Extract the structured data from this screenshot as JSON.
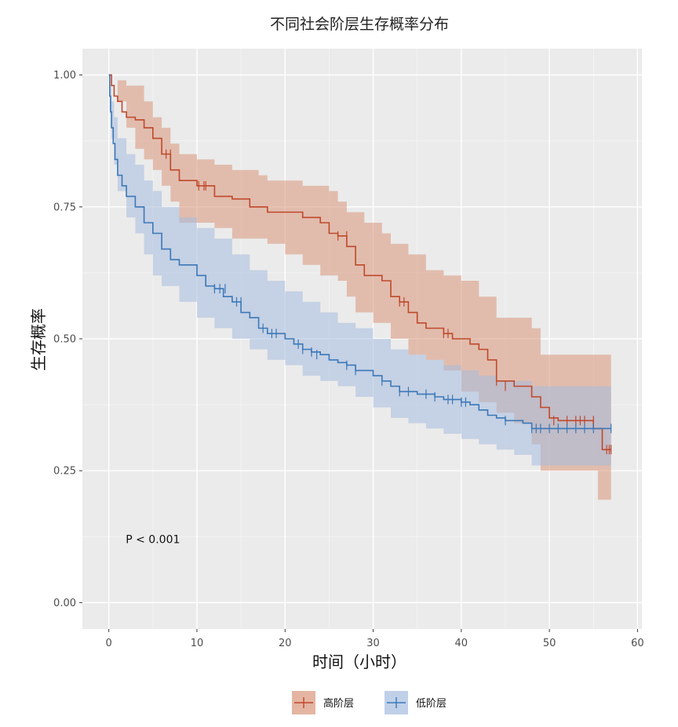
{
  "chart_data": {
    "type": "line",
    "subtype": "kaplan-meier survival curve with confidence bands",
    "title": "不同社会阶层生存概率分布",
    "xlabel": "时间（小时）",
    "ylabel": "生存概率",
    "xlim": [
      -3,
      60.5
    ],
    "ylim": [
      -0.05,
      1.05
    ],
    "xticks": [
      "0",
      "10",
      "20",
      "30",
      "40",
      "50",
      "60"
    ],
    "xtick_values": [
      0,
      10,
      20,
      30,
      40,
      50,
      60
    ],
    "yticks": [
      "0.00",
      "0.25",
      "0.50",
      "0.75",
      "1.00"
    ],
    "ytick_values": [
      0,
      0.25,
      0.5,
      0.75,
      1.0
    ],
    "grid": true,
    "legend_position": "bottom",
    "annotation": {
      "text": "P < 0.001",
      "x": 5,
      "y": 0.12
    },
    "series": [
      {
        "name": "高阶层",
        "color": "#c0482a",
        "band_color": "#d9957a",
        "points": [
          [
            0,
            1.0
          ],
          [
            0.3,
            0.98
          ],
          [
            0.6,
            0.96
          ],
          [
            1,
            0.95
          ],
          [
            1.5,
            0.93
          ],
          [
            2,
            0.92
          ],
          [
            3,
            0.915
          ],
          [
            4,
            0.9
          ],
          [
            5,
            0.88
          ],
          [
            6,
            0.85
          ],
          [
            7,
            0.82
          ],
          [
            8,
            0.8
          ],
          [
            10,
            0.79
          ],
          [
            12,
            0.77
          ],
          [
            14,
            0.765
          ],
          [
            16,
            0.75
          ],
          [
            18,
            0.74
          ],
          [
            20,
            0.74
          ],
          [
            22,
            0.73
          ],
          [
            24,
            0.72
          ],
          [
            25,
            0.7
          ],
          [
            26,
            0.695
          ],
          [
            27,
            0.675
          ],
          [
            28,
            0.64
          ],
          [
            29,
            0.62
          ],
          [
            31,
            0.61
          ],
          [
            32,
            0.58
          ],
          [
            33,
            0.57
          ],
          [
            34,
            0.55
          ],
          [
            35,
            0.53
          ],
          [
            36,
            0.52
          ],
          [
            38,
            0.51
          ],
          [
            39,
            0.5
          ],
          [
            41,
            0.49
          ],
          [
            42,
            0.48
          ],
          [
            43,
            0.46
          ],
          [
            44,
            0.42
          ],
          [
            46,
            0.41
          ],
          [
            48,
            0.39
          ],
          [
            49,
            0.37
          ],
          [
            50,
            0.35
          ],
          [
            51,
            0.345
          ],
          [
            55,
            0.33
          ],
          [
            56,
            0.29
          ],
          [
            57,
            0.29
          ]
        ],
        "upper": [
          [
            0,
            1.0
          ],
          [
            1,
            0.99
          ],
          [
            2,
            0.98
          ],
          [
            4,
            0.95
          ],
          [
            5,
            0.92
          ],
          [
            6,
            0.9
          ],
          [
            7,
            0.87
          ],
          [
            8,
            0.85
          ],
          [
            10,
            0.84
          ],
          [
            12,
            0.83
          ],
          [
            14,
            0.82
          ],
          [
            17,
            0.81
          ],
          [
            18,
            0.8
          ],
          [
            22,
            0.79
          ],
          [
            25,
            0.78
          ],
          [
            26,
            0.76
          ],
          [
            27,
            0.74
          ],
          [
            29,
            0.72
          ],
          [
            31,
            0.7
          ],
          [
            32,
            0.68
          ],
          [
            34,
            0.66
          ],
          [
            36,
            0.63
          ],
          [
            38,
            0.62
          ],
          [
            40,
            0.61
          ],
          [
            42,
            0.58
          ],
          [
            44,
            0.54
          ],
          [
            48,
            0.52
          ],
          [
            49,
            0.47
          ],
          [
            55,
            0.47
          ],
          [
            57,
            0.47
          ]
        ],
        "lower": [
          [
            0,
            1.0
          ],
          [
            1,
            0.95
          ],
          [
            2,
            0.9
          ],
          [
            3,
            0.86
          ],
          [
            4,
            0.84
          ],
          [
            5,
            0.82
          ],
          [
            6,
            0.79
          ],
          [
            7,
            0.76
          ],
          [
            8,
            0.72
          ],
          [
            12,
            0.71
          ],
          [
            14,
            0.69
          ],
          [
            18,
            0.68
          ],
          [
            20,
            0.66
          ],
          [
            22,
            0.64
          ],
          [
            24,
            0.62
          ],
          [
            26,
            0.61
          ],
          [
            27,
            0.58
          ],
          [
            28,
            0.55
          ],
          [
            30,
            0.53
          ],
          [
            32,
            0.5
          ],
          [
            34,
            0.47
          ],
          [
            36,
            0.46
          ],
          [
            38,
            0.44
          ],
          [
            40,
            0.4
          ],
          [
            42,
            0.38
          ],
          [
            44,
            0.36
          ],
          [
            46,
            0.34
          ],
          [
            48,
            0.3
          ],
          [
            49,
            0.25
          ],
          [
            55,
            0.25
          ],
          [
            55.5,
            0.195
          ],
          [
            57,
            0.195
          ]
        ],
        "censored": [
          [
            6.5,
            0.85
          ],
          [
            7,
            0.85
          ],
          [
            10.2,
            0.79
          ],
          [
            10.8,
            0.79
          ],
          [
            11,
            0.79
          ],
          [
            26,
            0.695
          ],
          [
            27,
            0.695
          ],
          [
            33,
            0.57
          ],
          [
            33.5,
            0.57
          ],
          [
            38,
            0.51
          ],
          [
            38.5,
            0.51
          ],
          [
            44,
            0.42
          ],
          [
            45,
            0.41
          ],
          [
            50.5,
            0.345
          ],
          [
            52,
            0.345
          ],
          [
            53,
            0.345
          ],
          [
            53.5,
            0.345
          ],
          [
            54,
            0.345
          ],
          [
            55,
            0.345
          ],
          [
            56.5,
            0.29
          ],
          [
            56.8,
            0.29
          ],
          [
            57,
            0.29
          ]
        ]
      },
      {
        "name": "低阶层",
        "color": "#3a78b9",
        "band_color": "#a5bcdf",
        "points": [
          [
            0,
            1.0
          ],
          [
            0.1,
            0.96
          ],
          [
            0.2,
            0.93
          ],
          [
            0.3,
            0.9
          ],
          [
            0.5,
            0.87
          ],
          [
            0.7,
            0.84
          ],
          [
            1,
            0.81
          ],
          [
            1.5,
            0.79
          ],
          [
            2,
            0.77
          ],
          [
            3,
            0.75
          ],
          [
            4,
            0.72
          ],
          [
            5,
            0.7
          ],
          [
            6,
            0.67
          ],
          [
            7,
            0.65
          ],
          [
            8,
            0.64
          ],
          [
            10,
            0.62
          ],
          [
            11,
            0.6
          ],
          [
            12,
            0.595
          ],
          [
            13,
            0.58
          ],
          [
            14,
            0.57
          ],
          [
            15,
            0.55
          ],
          [
            16,
            0.54
          ],
          [
            17,
            0.52
          ],
          [
            18,
            0.51
          ],
          [
            20,
            0.5
          ],
          [
            21,
            0.49
          ],
          [
            22,
            0.48
          ],
          [
            23,
            0.475
          ],
          [
            24,
            0.47
          ],
          [
            25,
            0.46
          ],
          [
            26,
            0.455
          ],
          [
            27,
            0.45
          ],
          [
            28,
            0.44
          ],
          [
            30,
            0.43
          ],
          [
            31,
            0.42
          ],
          [
            32,
            0.41
          ],
          [
            33,
            0.4
          ],
          [
            35,
            0.395
          ],
          [
            37,
            0.39
          ],
          [
            38,
            0.385
          ],
          [
            40,
            0.38
          ],
          [
            41,
            0.375
          ],
          [
            42,
            0.365
          ],
          [
            43,
            0.355
          ],
          [
            44,
            0.35
          ],
          [
            45,
            0.345
          ],
          [
            47,
            0.34
          ],
          [
            48,
            0.33
          ],
          [
            57,
            0.33
          ]
        ],
        "upper": [
          [
            0,
            1.0
          ],
          [
            0.1,
            0.98
          ],
          [
            0.3,
            0.95
          ],
          [
            0.6,
            0.92
          ],
          [
            1,
            0.88
          ],
          [
            2,
            0.85
          ],
          [
            3,
            0.83
          ],
          [
            4,
            0.8
          ],
          [
            5,
            0.78
          ],
          [
            6,
            0.75
          ],
          [
            8,
            0.73
          ],
          [
            10,
            0.71
          ],
          [
            12,
            0.69
          ],
          [
            14,
            0.66
          ],
          [
            16,
            0.63
          ],
          [
            18,
            0.61
          ],
          [
            20,
            0.59
          ],
          [
            22,
            0.57
          ],
          [
            24,
            0.55
          ],
          [
            26,
            0.53
          ],
          [
            28,
            0.52
          ],
          [
            30,
            0.5
          ],
          [
            32,
            0.48
          ],
          [
            34,
            0.47
          ],
          [
            36,
            0.46
          ],
          [
            38,
            0.45
          ],
          [
            40,
            0.44
          ],
          [
            42,
            0.43
          ],
          [
            44,
            0.42
          ],
          [
            48,
            0.41
          ],
          [
            57,
            0.41
          ]
        ],
        "lower": [
          [
            0,
            1.0
          ],
          [
            0.1,
            0.93
          ],
          [
            0.3,
            0.88
          ],
          [
            0.6,
            0.83
          ],
          [
            1,
            0.78
          ],
          [
            2,
            0.73
          ],
          [
            3,
            0.7
          ],
          [
            4,
            0.66
          ],
          [
            5,
            0.62
          ],
          [
            6,
            0.6
          ],
          [
            8,
            0.57
          ],
          [
            10,
            0.54
          ],
          [
            12,
            0.52
          ],
          [
            14,
            0.5
          ],
          [
            16,
            0.48
          ],
          [
            18,
            0.46
          ],
          [
            20,
            0.45
          ],
          [
            22,
            0.43
          ],
          [
            24,
            0.42
          ],
          [
            26,
            0.41
          ],
          [
            28,
            0.39
          ],
          [
            30,
            0.37
          ],
          [
            32,
            0.35
          ],
          [
            34,
            0.34
          ],
          [
            36,
            0.33
          ],
          [
            38,
            0.32
          ],
          [
            40,
            0.31
          ],
          [
            42,
            0.3
          ],
          [
            44,
            0.29
          ],
          [
            46,
            0.28
          ],
          [
            48,
            0.26
          ],
          [
            50,
            0.26
          ],
          [
            57,
            0.26
          ]
        ],
        "censored": [
          [
            12,
            0.595
          ],
          [
            12.6,
            0.595
          ],
          [
            13.2,
            0.595
          ],
          [
            14.5,
            0.57
          ],
          [
            15,
            0.57
          ],
          [
            17.5,
            0.52
          ],
          [
            18.5,
            0.51
          ],
          [
            19,
            0.51
          ],
          [
            21.5,
            0.49
          ],
          [
            22,
            0.48
          ],
          [
            23,
            0.475
          ],
          [
            23.6,
            0.47
          ],
          [
            27,
            0.45
          ],
          [
            28,
            0.44
          ],
          [
            31,
            0.42
          ],
          [
            33,
            0.4
          ],
          [
            34,
            0.4
          ],
          [
            36,
            0.395
          ],
          [
            37,
            0.39
          ],
          [
            38.5,
            0.385
          ],
          [
            39,
            0.385
          ],
          [
            40,
            0.38
          ],
          [
            40.5,
            0.38
          ],
          [
            45,
            0.345
          ],
          [
            48,
            0.33
          ],
          [
            48.5,
            0.33
          ],
          [
            49,
            0.33
          ],
          [
            50,
            0.33
          ],
          [
            51,
            0.33
          ],
          [
            52,
            0.33
          ],
          [
            53,
            0.33
          ],
          [
            54,
            0.33
          ],
          [
            55,
            0.33
          ],
          [
            57,
            0.33
          ]
        ]
      }
    ]
  }
}
